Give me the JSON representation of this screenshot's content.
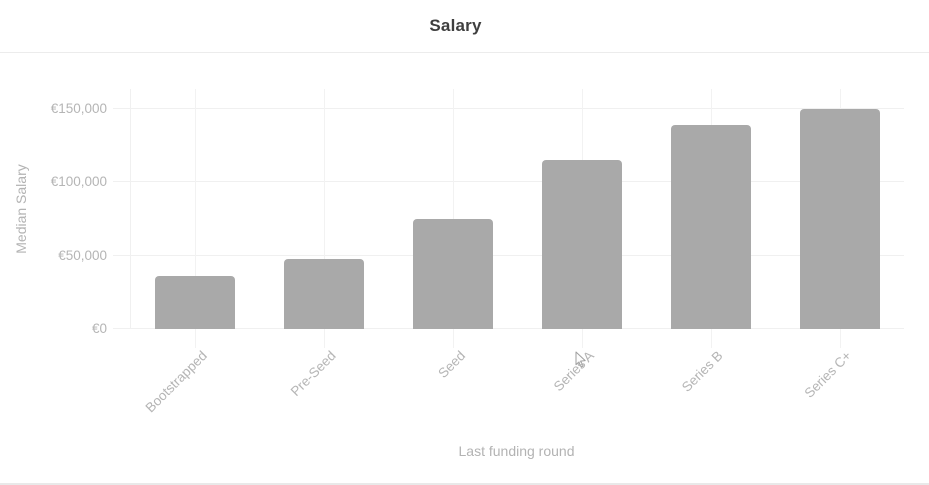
{
  "header": {
    "title": "Salary"
  },
  "chart_data": {
    "type": "bar",
    "title": "Salary",
    "xlabel": "Last funding round",
    "ylabel": "Median Salary",
    "categories": [
      "Bootstrapped",
      "Pre-Seed",
      "Seed",
      "Series A",
      "Series B",
      "Series C+"
    ],
    "values": [
      36000,
      48000,
      75000,
      115000,
      139000,
      150000
    ],
    "y_ticks": [
      {
        "value": 0,
        "label": "€0"
      },
      {
        "value": 50000,
        "label": "€50,000"
      },
      {
        "value": 100000,
        "label": "€100,000"
      },
      {
        "value": 150000,
        "label": "€150,000"
      }
    ],
    "ylim": [
      0,
      163000
    ],
    "grid": true,
    "legend": false,
    "colors": {
      "bar": "#a9a9a9",
      "grid_h": "#f0f0f0",
      "grid_v": "#f2f2f2",
      "tick_label": "#b5b5b5",
      "axis_title": "#b3b3b3",
      "title": "#3f3f3f",
      "divider": "#ececec",
      "background": "#ffffff"
    }
  },
  "cursor": {
    "icon": "mouse-pointer-icon"
  }
}
